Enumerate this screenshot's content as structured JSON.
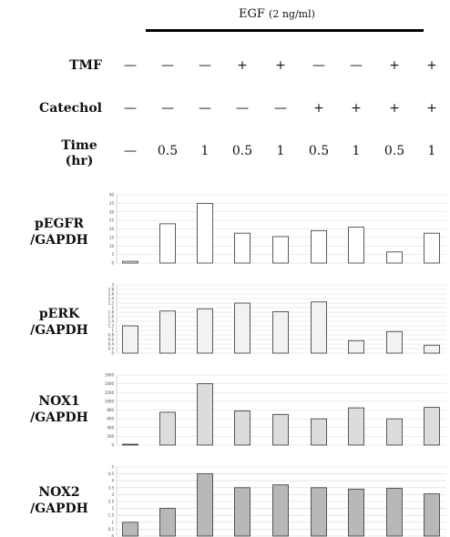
{
  "header": {
    "egf_label": "EGF",
    "egf_conc": "(2 ng/ml)"
  },
  "conditions": {
    "rows": [
      {
        "label": "TMF",
        "values": [
          "—",
          "—",
          "—",
          "+",
          "+",
          "—",
          "—",
          "+",
          "+"
        ]
      },
      {
        "label": "Catechol",
        "values": [
          "—",
          "—",
          "—",
          "—",
          "—",
          "+",
          "+",
          "+",
          "+"
        ]
      }
    ],
    "time": {
      "label_line1": "Time",
      "label_line2": "(hr)",
      "values": [
        "—",
        "0.5",
        "1",
        "0.5",
        "1",
        "0.5",
        "1",
        "0.5",
        "1"
      ]
    }
  },
  "colors": {
    "pEGFR": "#ffffff",
    "pERK": "#f2f2f2",
    "NOX1": "#dcdcdc",
    "NOX2": "#b8b8b8",
    "bar_stroke": "#333333",
    "grid": "#d8d8d8"
  },
  "chart_data": [
    {
      "type": "bar",
      "label_line1": "pEGFR",
      "label_line2": "/GAPDH",
      "ylim": [
        0,
        40
      ],
      "yticks": [
        "0",
        "5",
        "10",
        "15",
        "20",
        "25",
        "30",
        "35",
        "40"
      ],
      "values": [
        1,
        23,
        35,
        17.5,
        15.5,
        19,
        21,
        6.5,
        17.5
      ]
    },
    {
      "type": "bar",
      "label_line1": "pERK",
      "label_line2": "/GAPDH",
      "ylim": [
        0,
        3
      ],
      "yticks": [
        "0",
        "0.2",
        "0.4",
        "0.6",
        "0.8",
        "1",
        "1.2",
        "1.4",
        "1.6",
        "1.8",
        "2",
        "2.2",
        "2.4",
        "2.6",
        "2.8",
        "3"
      ],
      "values": [
        1.2,
        1.85,
        1.95,
        2.2,
        1.82,
        2.25,
        0.55,
        0.95,
        0.35
      ]
    },
    {
      "type": "bar",
      "label_line1": "NOX1",
      "label_line2": "/GAPDH",
      "ylim": [
        0,
        1600
      ],
      "yticks": [
        "0",
        "200",
        "400",
        "600",
        "800",
        "1000",
        "1200",
        "1400",
        "1600"
      ],
      "values": [
        20,
        750,
        1400,
        780,
        700,
        600,
        850,
        600,
        860
      ]
    },
    {
      "type": "bar",
      "label_line1": "NOX2",
      "label_line2": "/GAPDH",
      "ylim": [
        0,
        5
      ],
      "yticks": [
        "0",
        "0.5",
        "1",
        "1.5",
        "2",
        "2.5",
        "3",
        "3.5",
        "4",
        "4.5",
        "5"
      ],
      "values": [
        1,
        2,
        4.5,
        3.5,
        3.7,
        3.5,
        3.4,
        3.45,
        3.05
      ]
    }
  ]
}
